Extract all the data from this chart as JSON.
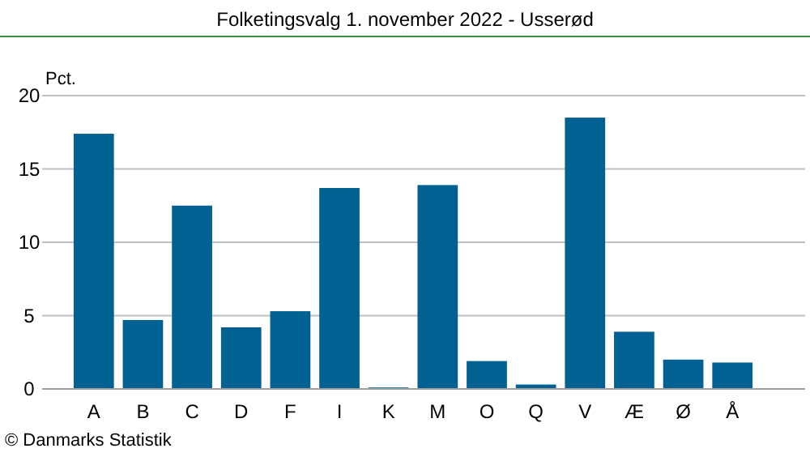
{
  "chart_data": {
    "type": "bar",
    "title": "Folketingsvalg 1. november 2022 - Usserød",
    "ylabel": "Pct.",
    "categories": [
      "A",
      "B",
      "C",
      "D",
      "F",
      "I",
      "K",
      "M",
      "O",
      "Q",
      "V",
      "Æ",
      "Ø",
      "Å"
    ],
    "values": [
      17.4,
      4.7,
      12.5,
      4.2,
      5.3,
      13.7,
      0.1,
      13.9,
      1.9,
      0.3,
      18.5,
      3.9,
      2.0,
      1.8
    ],
    "color": "#006192",
    "ylim": [
      0,
      20
    ],
    "yticks": [
      0,
      5,
      10,
      15,
      20
    ],
    "grid": "y",
    "annotations": [
      "© Danmarks Statistik"
    ]
  }
}
